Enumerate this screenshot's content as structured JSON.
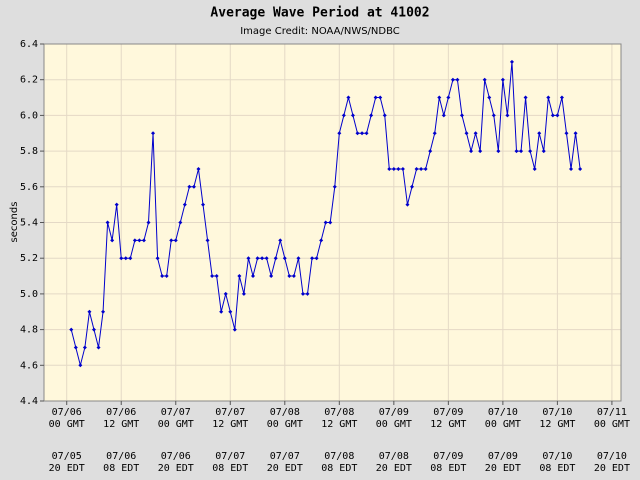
{
  "chart_data": {
    "type": "line",
    "title": "Average Wave Period at 41002",
    "subtitle": "Image Credit: NOAA/NWS/NDBC",
    "y_label": "seconds",
    "color": "#0000cc",
    "grid": true,
    "x": [
      1,
      2,
      3,
      4,
      5,
      6,
      7,
      8,
      9,
      10,
      11,
      12,
      13,
      14,
      15,
      16,
      17,
      18,
      19,
      20,
      21,
      22,
      23,
      24,
      25,
      26,
      27,
      28,
      29,
      30,
      31,
      32,
      33,
      34,
      35,
      36,
      37,
      38,
      39,
      40,
      41,
      42,
      43,
      44,
      45,
      46,
      47,
      48,
      49,
      50,
      51,
      52,
      53,
      54,
      55,
      56,
      57,
      58,
      59,
      60,
      61,
      62,
      63,
      64,
      65,
      66,
      67,
      68,
      69,
      70,
      71,
      72,
      73,
      74,
      75,
      76,
      77,
      78,
      79,
      80,
      81,
      82,
      83,
      84,
      85,
      86,
      87,
      88,
      89,
      90,
      91,
      92,
      93,
      94,
      95,
      96,
      97,
      98,
      99,
      100,
      101,
      102,
      103,
      104,
      105,
      106,
      107,
      108,
      109,
      110,
      111,
      112,
      113
    ],
    "values": [
      4.8,
      4.7,
      4.6,
      4.7,
      4.9,
      4.8,
      4.7,
      4.9,
      5.4,
      5.3,
      5.5,
      5.2,
      5.2,
      5.2,
      5.3,
      5.3,
      5.3,
      5.4,
      5.9,
      5.2,
      5.1,
      5.1,
      5.3,
      5.3,
      5.4,
      5.5,
      5.6,
      5.6,
      5.7,
      5.5,
      5.3,
      5.1,
      5.1,
      4.9,
      5.0,
      4.9,
      4.8,
      5.1,
      5.0,
      5.2,
      5.1,
      5.2,
      5.2,
      5.2,
      5.1,
      5.2,
      5.3,
      5.2,
      5.1,
      5.1,
      5.2,
      5.0,
      5.0,
      5.2,
      5.2,
      5.3,
      5.4,
      5.4,
      5.6,
      5.9,
      6.0,
      6.1,
      6.0,
      5.9,
      5.9,
      5.9,
      6.0,
      6.1,
      6.1,
      6.0,
      5.7,
      5.7,
      5.7,
      5.7,
      5.5,
      5.6,
      5.7,
      5.7,
      5.7,
      5.8,
      5.9,
      6.1,
      6.0,
      6.1,
      6.2,
      6.2,
      6.0,
      5.9,
      5.8,
      5.9,
      5.8,
      6.2,
      6.1,
      6.0,
      5.8,
      6.2,
      6.0,
      6.3,
      5.8,
      5.8,
      6.1,
      5.8,
      5.7,
      5.9,
      5.8,
      6.1,
      6.0,
      6.0,
      6.1,
      5.9,
      5.7,
      5.9,
      5.7
    ],
    "xlim": [
      -5,
      122
    ],
    "ylim": [
      4.4,
      6.4
    ],
    "yticks": [
      4.4,
      4.6,
      4.8,
      {
        "value": 5,
        "label": "5.0"
      },
      5.2,
      5.4,
      5.6,
      5.8,
      {
        "value": 6,
        "label": "6.0"
      },
      6.2,
      6.4
    ],
    "xticks": [
      {
        "value": 0,
        "label": "07/06"
      },
      {
        "value": 12,
        "label": "07/06"
      },
      {
        "value": 24,
        "label": "07/07"
      },
      {
        "value": 36,
        "label": "07/07"
      },
      {
        "value": 48,
        "label": "07/08"
      },
      {
        "value": 60,
        "label": "07/08"
      },
      {
        "value": 72,
        "label": "07/09"
      },
      {
        "value": 84,
        "label": "07/09"
      },
      {
        "value": 96,
        "label": "07/10"
      },
      {
        "value": 108,
        "label": "07/10"
      },
      {
        "value": 120,
        "label": "07/11"
      }
    ],
    "xtick_times": [
      "00 GMT",
      "12 GMT",
      "00 GMT",
      "12 GMT",
      "00 GMT",
      "12 GMT",
      "00 GMT",
      "12 GMT",
      "00 GMT",
      "12 GMT",
      "00 GMT"
    ],
    "edt_dates": [
      "07/05",
      "07/06",
      "07/06",
      "07/07",
      "07/07",
      "07/08",
      "07/08",
      "07/09",
      "07/09",
      "07/10",
      "07/10"
    ],
    "edt_times": [
      "20 EDT",
      "08 EDT",
      "20 EDT",
      "08 EDT",
      "20 EDT",
      "08 EDT",
      "20 EDT",
      "08 EDT",
      "20 EDT",
      "08 EDT",
      "20 EDT"
    ]
  }
}
